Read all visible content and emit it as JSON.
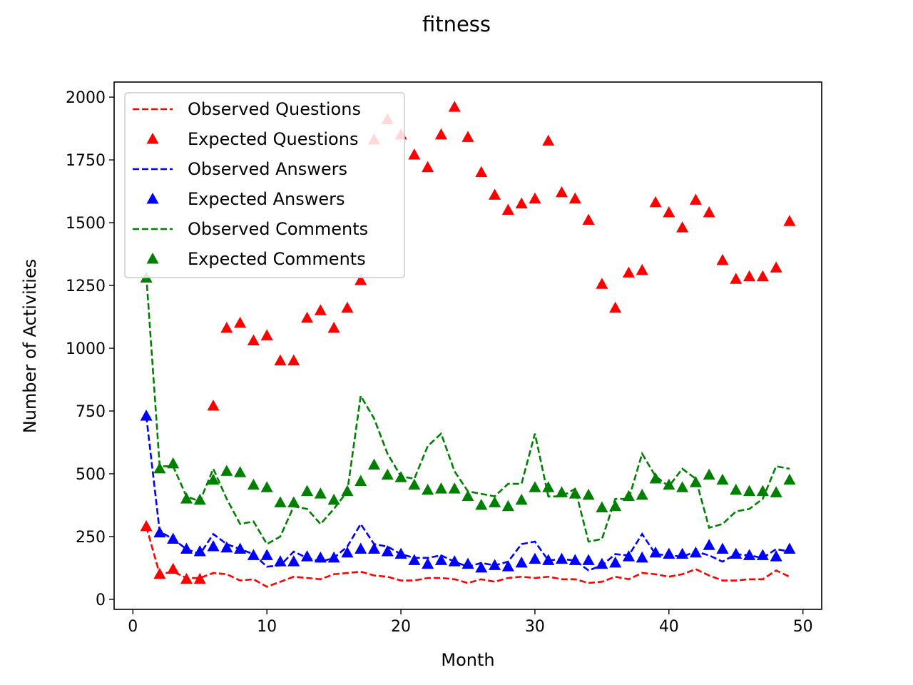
{
  "chart_data": {
    "type": "line",
    "title": "fitness",
    "xlabel": "Month",
    "ylabel": "Number of Activities",
    "xlim": [
      -1.4,
      51.4
    ],
    "ylim": [
      -40,
      2060
    ],
    "xticks": [
      0,
      10,
      20,
      30,
      40,
      50
    ],
    "yticks": [
      0,
      250,
      500,
      750,
      1000,
      1250,
      1500,
      1750,
      2000
    ],
    "legend_position": "upper-left",
    "x": [
      1,
      2,
      3,
      4,
      5,
      6,
      7,
      8,
      9,
      10,
      11,
      12,
      13,
      14,
      15,
      16,
      17,
      18,
      19,
      20,
      21,
      22,
      23,
      24,
      25,
      26,
      27,
      28,
      29,
      30,
      31,
      32,
      33,
      34,
      35,
      36,
      37,
      38,
      39,
      40,
      41,
      42,
      43,
      44,
      45,
      46,
      47,
      48,
      49
    ],
    "series": [
      {
        "name": "Observed Questions",
        "style": "dashed-line",
        "color": "#ff0000",
        "values": [
          290,
          100,
          110,
          85,
          85,
          105,
          100,
          75,
          80,
          50,
          70,
          90,
          85,
          80,
          100,
          105,
          110,
          95,
          90,
          75,
          75,
          85,
          85,
          80,
          65,
          80,
          70,
          85,
          90,
          85,
          90,
          80,
          80,
          65,
          70,
          90,
          80,
          105,
          100,
          90,
          100,
          120,
          95,
          75,
          75,
          80,
          80,
          115,
          90
        ]
      },
      {
        "name": "Expected Questions",
        "style": "triangle-markers",
        "color": "#ff0000",
        "values": [
          290,
          100,
          120,
          80,
          80,
          770,
          1080,
          1100,
          1030,
          1050,
          950,
          950,
          1120,
          1150,
          1080,
          1160,
          1270,
          1830,
          1910,
          1850,
          1770,
          1720,
          1850,
          1960,
          1840,
          1700,
          1610,
          1550,
          1575,
          1595,
          1825,
          1620,
          1595,
          1510,
          1255,
          1160,
          1300,
          1310,
          1580,
          1540,
          1480,
          1590,
          1540,
          1350,
          1275,
          1285,
          1285,
          1320,
          1505
        ]
      },
      {
        "name": "Observed Answers",
        "style": "dashed-line",
        "color": "#0000ff",
        "values": [
          730,
          270,
          240,
          200,
          180,
          260,
          220,
          200,
          180,
          130,
          135,
          190,
          165,
          150,
          165,
          210,
          300,
          220,
          210,
          180,
          165,
          165,
          175,
          150,
          130,
          145,
          135,
          150,
          220,
          230,
          155,
          160,
          155,
          115,
          135,
          180,
          175,
          260,
          180,
          175,
          170,
          190,
          175,
          150,
          180,
          175,
          165,
          200,
          190
        ]
      },
      {
        "name": "Expected Answers",
        "style": "triangle-markers",
        "color": "#0000ff",
        "values": [
          730,
          265,
          240,
          200,
          190,
          210,
          205,
          200,
          175,
          175,
          150,
          150,
          170,
          165,
          165,
          185,
          200,
          200,
          190,
          180,
          155,
          140,
          155,
          150,
          140,
          125,
          135,
          130,
          145,
          160,
          155,
          160,
          155,
          155,
          140,
          145,
          170,
          165,
          185,
          180,
          180,
          185,
          215,
          200,
          180,
          175,
          175,
          170,
          200
        ]
      },
      {
        "name": "Observed Comments",
        "style": "dashed-line",
        "color": "#008000",
        "values": [
          1290,
          530,
          530,
          410,
          390,
          520,
          400,
          300,
          310,
          220,
          250,
          370,
          360,
          300,
          360,
          430,
          810,
          720,
          580,
          490,
          480,
          610,
          660,
          510,
          430,
          420,
          410,
          460,
          460,
          660,
          410,
          410,
          440,
          230,
          240,
          400,
          400,
          580,
          490,
          450,
          520,
          480,
          285,
          300,
          350,
          360,
          400,
          530,
          520
        ]
      },
      {
        "name": "Expected Comments",
        "style": "triangle-markers",
        "color": "#008000",
        "values": [
          1280,
          520,
          540,
          400,
          395,
          475,
          510,
          505,
          455,
          445,
          385,
          385,
          430,
          420,
          395,
          430,
          470,
          535,
          495,
          485,
          455,
          435,
          440,
          440,
          410,
          375,
          385,
          370,
          395,
          445,
          445,
          425,
          420,
          415,
          365,
          370,
          410,
          415,
          480,
          455,
          445,
          465,
          495,
          475,
          435,
          430,
          430,
          425,
          475
        ]
      }
    ]
  }
}
